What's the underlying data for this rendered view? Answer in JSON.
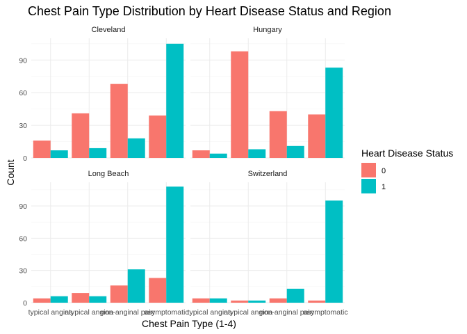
{
  "chart_data": {
    "type": "bar",
    "title": "Chest Pain Type Distribution by Heart Disease Status and Region",
    "xlabel": "Chest Pain Type (1-4)",
    "ylabel": "Count",
    "categories": [
      "typical angina",
      "atypical angina",
      "non-anginal pain",
      "asymptomatic"
    ],
    "legend": {
      "title": "Heart Disease Status",
      "placement": "right",
      "entries": [
        {
          "label": "0",
          "color": "#F8766D"
        },
        {
          "label": "1",
          "color": "#00BFC4"
        }
      ]
    },
    "grid": true,
    "facets": [
      {
        "name": "Cleveland",
        "ylim": [
          0,
          110
        ],
        "yticks": [
          0,
          30,
          60,
          90
        ],
        "series": [
          {
            "name": "0",
            "values": [
              16,
              41,
              68,
              39
            ]
          },
          {
            "name": "1",
            "values": [
              7,
              9,
              18,
              105
            ]
          }
        ]
      },
      {
        "name": "Hungary",
        "ylim": [
          0,
          110
        ],
        "yticks": [
          0,
          30,
          60,
          90
        ],
        "series": [
          {
            "name": "0",
            "values": [
              7,
              98,
              43,
              40
            ]
          },
          {
            "name": "1",
            "values": [
              4,
              8,
              11,
              83
            ]
          }
        ]
      },
      {
        "name": "Long Beach",
        "ylim": [
          0,
          112
        ],
        "yticks": [
          0,
          30,
          60,
          90
        ],
        "series": [
          {
            "name": "0",
            "values": [
              4,
              9,
              16,
              23
            ]
          },
          {
            "name": "1",
            "values": [
              6,
              6,
              31,
              108
            ]
          }
        ]
      },
      {
        "name": "Switzerland",
        "ylim": [
          0,
          112
        ],
        "yticks": [
          0,
          30,
          60,
          90
        ],
        "series": [
          {
            "name": "0",
            "values": [
              4,
              2,
              4,
              2
            ]
          },
          {
            "name": "1",
            "values": [
              4,
              2,
              13,
              95
            ]
          }
        ]
      }
    ]
  }
}
